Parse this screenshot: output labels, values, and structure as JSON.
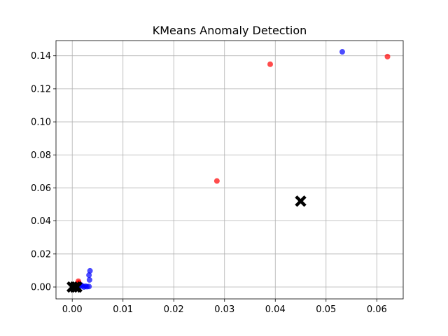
{
  "chart_data": {
    "type": "scatter",
    "title": "KMeans Anomaly Detection",
    "xlabel": "",
    "ylabel": "",
    "xlim": [
      -0.0032,
      0.0652
    ],
    "ylim": [
      -0.0072,
      0.1492
    ],
    "xticks": [
      0.0,
      0.01,
      0.02,
      0.03,
      0.04,
      0.05,
      0.06
    ],
    "xtick_labels": [
      "0.00",
      "0.01",
      "0.02",
      "0.03",
      "0.04",
      "0.05",
      "0.06"
    ],
    "yticks": [
      0.0,
      0.02,
      0.04,
      0.06,
      0.08,
      0.1,
      0.12,
      0.14
    ],
    "ytick_labels": [
      "0.00",
      "0.02",
      "0.04",
      "0.06",
      "0.08",
      "0.10",
      "0.12",
      "0.14"
    ],
    "grid": true,
    "legend": "none",
    "series": [
      {
        "color": "#0000ff",
        "marker": "circle",
        "alpha": 0.7,
        "points": [
          [
            0.0002,
            0.0
          ],
          [
            0.0005,
            0.0005
          ],
          [
            0.0008,
            0.0003
          ],
          [
            0.0011,
            0.0008
          ],
          [
            0.0014,
            0.0002
          ],
          [
            0.0017,
            0.0013
          ],
          [
            0.002,
            0.0006
          ],
          [
            0.0023,
            0.0
          ],
          [
            0.0026,
            0.0005
          ],
          [
            0.0029,
            0.0002
          ],
          [
            0.0033,
            0.0003
          ],
          [
            0.0034,
            0.0043
          ],
          [
            0.0033,
            0.0072
          ],
          [
            0.0035,
            0.0098
          ],
          [
            0.0532,
            0.1424
          ]
        ]
      },
      {
        "color": "#ff0000",
        "marker": "circle",
        "alpha": 0.7,
        "points": [
          [
            0.0012,
            0.0035
          ],
          [
            0.0011,
            0.0018
          ],
          [
            0.0013,
            0.0025
          ],
          [
            0.0285,
            0.0642
          ],
          [
            0.039,
            0.1349
          ],
          [
            0.0621,
            0.1395
          ]
        ]
      }
    ],
    "centroids": {
      "color": "#000000",
      "marker": "X",
      "points": [
        [
          0.0,
          0.0
        ],
        [
          0.0006,
          0.0
        ],
        [
          0.0009,
          0.0
        ],
        [
          0.045,
          0.052
        ]
      ]
    }
  }
}
